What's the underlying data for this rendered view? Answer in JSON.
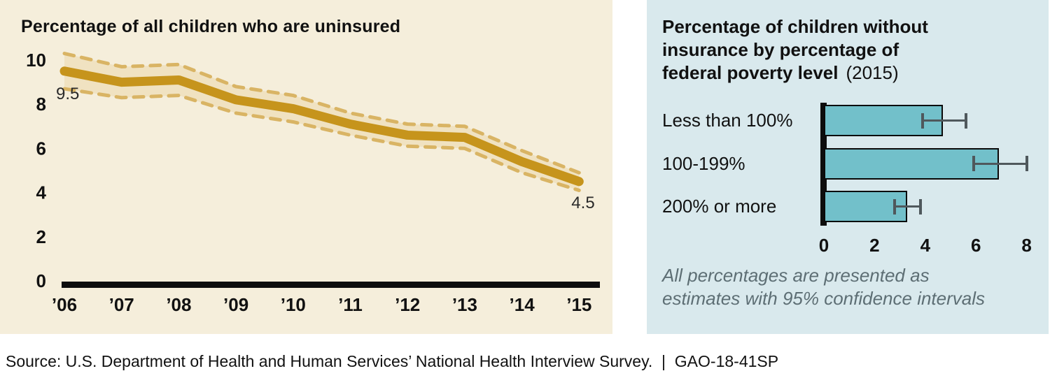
{
  "left_panel": {
    "title": "Percentage of all children who are uninsured"
  },
  "right_panel": {
    "title_lines": [
      "Percentage of children without",
      "insurance by percentage of",
      "federal poverty level"
    ],
    "title_year": "(2015)",
    "note_lines": [
      "All percentages are presented as",
      "estimates with 95% confidence intervals"
    ]
  },
  "footer": {
    "text": "Source: U.S. Department of Health and Human Services’ National Health Interview Survey.  |  GAO-18-41SP"
  },
  "colors": {
    "left_panel_bg": "#f5eedb",
    "right_panel_bg": "#d9e9ed",
    "line": "#c6941c",
    "ci_dash": "#d9b464",
    "ci_band": "#f0e2c1",
    "bar_fill": "#72c0ca",
    "bar_border": "#0a0a0a",
    "error_bar": "#4f585c",
    "axis": "#0d0d0d",
    "note_text": "#5d6e74"
  },
  "chart_data": [
    {
      "type": "line",
      "title": "Percentage of all children who are uninsured",
      "categories": [
        "’06",
        "’07",
        "’08",
        "’09",
        "’10",
        "’11",
        "’12",
        "’13",
        "’14",
        "’15"
      ],
      "series": [
        {
          "name": "Percentage of children uninsured (estimate)",
          "values": [
            9.5,
            9.0,
            9.1,
            8.2,
            7.8,
            7.1,
            6.6,
            6.5,
            5.4,
            4.5
          ]
        },
        {
          "name": "95% confidence interval upper bound",
          "values": [
            10.3,
            9.7,
            9.8,
            8.8,
            8.4,
            7.6,
            7.1,
            7.0,
            5.9,
            4.9
          ]
        },
        {
          "name": "95% confidence interval lower bound",
          "values": [
            8.7,
            8.3,
            8.4,
            7.6,
            7.2,
            6.6,
            6.1,
            6.0,
            4.9,
            4.1
          ]
        }
      ],
      "point_labels": {
        "first": "9.5",
        "last": "4.5"
      },
      "xlabel": "",
      "ylabel": "",
      "y_ticks": [
        0,
        2,
        4,
        6,
        8,
        10
      ],
      "ylim": [
        0,
        10
      ],
      "grid": false,
      "legend": "none"
    },
    {
      "type": "bar",
      "orientation": "horizontal",
      "title": "Percentage of children without insurance by percentage of federal poverty level (2015)",
      "categories": [
        "Less than 100%",
        "100-199%",
        "200% or more"
      ],
      "values": [
        4.7,
        6.9,
        3.3
      ],
      "ci_lower": [
        3.9,
        5.9,
        2.8
      ],
      "ci_upper": [
        5.6,
        8.0,
        3.8
      ],
      "x_ticks": [
        0,
        2,
        4,
        6,
        8
      ],
      "xlim": [
        0,
        8
      ],
      "grid": false,
      "legend": "none",
      "note": "All percentages are presented as estimates with 95% confidence intervals"
    }
  ]
}
